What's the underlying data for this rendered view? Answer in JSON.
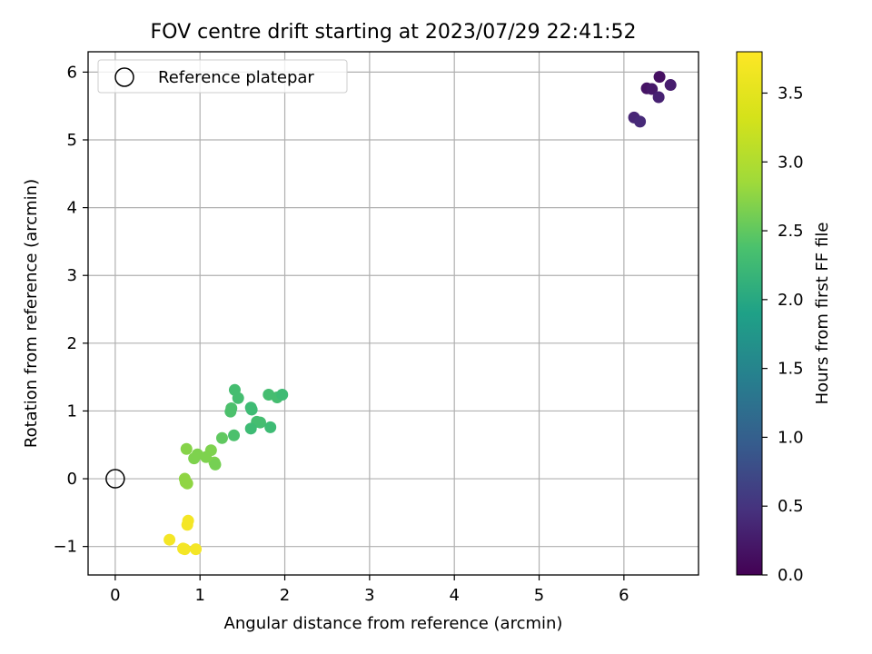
{
  "chart_data": {
    "type": "scatter",
    "title": "FOV centre drift starting at 2023/07/29 22:41:52",
    "xlabel": "Angular distance from reference (arcmin)",
    "ylabel": "Rotation from reference (arcmin)",
    "xlim": [
      -0.32,
      6.88
    ],
    "ylim": [
      -1.42,
      6.3
    ],
    "xticks": [
      0,
      1,
      2,
      3,
      4,
      5,
      6
    ],
    "yticks": [
      -1,
      0,
      1,
      2,
      3,
      4,
      5,
      6
    ],
    "grid": true,
    "legend": {
      "placement": "top-left",
      "entries": [
        "Reference platepar"
      ]
    },
    "reference_point": {
      "x": 0,
      "y": 0,
      "label": "Reference platepar"
    },
    "colorbar": {
      "label": "Hours from first FF file",
      "range": [
        0.0,
        3.8
      ],
      "ticks": [
        0.0,
        0.5,
        1.0,
        1.5,
        2.0,
        2.5,
        3.0,
        3.5
      ],
      "colormap": "viridis"
    },
    "points": [
      {
        "x": 6.42,
        "y": 5.93,
        "c": 0.15
      },
      {
        "x": 6.27,
        "y": 5.76,
        "c": 0.2
      },
      {
        "x": 6.33,
        "y": 5.75,
        "c": 0.25
      },
      {
        "x": 6.55,
        "y": 5.81,
        "c": 0.3
      },
      {
        "x": 6.41,
        "y": 5.63,
        "c": 0.35
      },
      {
        "x": 6.12,
        "y": 5.33,
        "c": 0.4
      },
      {
        "x": 6.19,
        "y": 5.27,
        "c": 0.45
      },
      {
        "x": 1.41,
        "y": 1.31,
        "c": 2.65
      },
      {
        "x": 1.45,
        "y": 1.19,
        "c": 2.65
      },
      {
        "x": 1.37,
        "y": 1.04,
        "c": 2.7
      },
      {
        "x": 1.36,
        "y": 0.99,
        "c": 2.7
      },
      {
        "x": 1.6,
        "y": 1.05,
        "c": 2.6
      },
      {
        "x": 1.61,
        "y": 1.02,
        "c": 2.6
      },
      {
        "x": 1.81,
        "y": 1.24,
        "c": 2.65
      },
      {
        "x": 1.91,
        "y": 1.2,
        "c": 2.65
      },
      {
        "x": 1.97,
        "y": 1.24,
        "c": 2.6
      },
      {
        "x": 1.67,
        "y": 0.84,
        "c": 2.65
      },
      {
        "x": 1.71,
        "y": 0.83,
        "c": 2.65
      },
      {
        "x": 1.6,
        "y": 0.74,
        "c": 2.6
      },
      {
        "x": 1.83,
        "y": 0.76,
        "c": 2.6
      },
      {
        "x": 1.4,
        "y": 0.64,
        "c": 2.7
      },
      {
        "x": 1.26,
        "y": 0.6,
        "c": 2.85
      },
      {
        "x": 0.84,
        "y": 0.44,
        "c": 3.1
      },
      {
        "x": 1.13,
        "y": 0.42,
        "c": 3.05
      },
      {
        "x": 0.97,
        "y": 0.36,
        "c": 3.05
      },
      {
        "x": 0.93,
        "y": 0.3,
        "c": 3.05
      },
      {
        "x": 1.07,
        "y": 0.32,
        "c": 3.05
      },
      {
        "x": 1.17,
        "y": 0.24,
        "c": 3.05
      },
      {
        "x": 1.18,
        "y": 0.21,
        "c": 3.0
      },
      {
        "x": 0.82,
        "y": 0.0,
        "c": 3.15
      },
      {
        "x": 0.83,
        "y": -0.05,
        "c": 3.15
      },
      {
        "x": 0.85,
        "y": -0.07,
        "c": 3.15
      },
      {
        "x": 0.86,
        "y": -0.62,
        "c": 3.75
      },
      {
        "x": 0.85,
        "y": -0.68,
        "c": 3.75
      },
      {
        "x": 0.64,
        "y": -0.9,
        "c": 3.75
      },
      {
        "x": 0.8,
        "y": -1.03,
        "c": 3.75
      },
      {
        "x": 0.82,
        "y": -1.04,
        "c": 3.75
      },
      {
        "x": 0.95,
        "y": -1.04,
        "c": 3.75
      }
    ]
  },
  "colors": {
    "grid": "#b0b0b0",
    "axes": "#000000",
    "reference_marker": "#000000"
  }
}
